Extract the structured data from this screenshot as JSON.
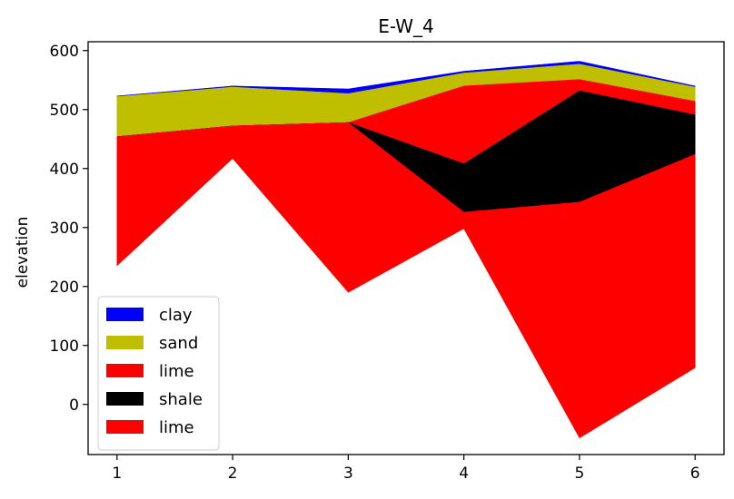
{
  "chart_data": {
    "type": "area",
    "title": "E-W_4",
    "xlabel": "",
    "ylabel": "elevation",
    "x": [
      1,
      2,
      3,
      4,
      5,
      6
    ],
    "xticks": [
      "1",
      "2",
      "3",
      "4",
      "5",
      "6"
    ],
    "yticks": [
      "0",
      "100",
      "200",
      "300",
      "400",
      "500",
      "600"
    ],
    "xlim": [
      0.75,
      6.25
    ],
    "ylim": [
      -85,
      615
    ],
    "grid": false,
    "legend_position": "lower-left",
    "layers": [
      {
        "name": "clay",
        "color": "#0000ff",
        "top": [
          523,
          540,
          535,
          565,
          582,
          540
        ],
        "bottom": [
          522,
          538,
          527,
          562,
          577,
          538
        ]
      },
      {
        "name": "sand",
        "color": "#bfbf00",
        "top": [
          522,
          538,
          527,
          562,
          577,
          538
        ],
        "bottom": [
          454,
          472,
          478,
          540,
          551,
          514
        ]
      },
      {
        "name": "lime",
        "color": "#ff0000",
        "top": [
          454,
          472,
          478,
          540,
          551,
          514
        ],
        "bottom": [
          454,
          472,
          478,
          408,
          532,
          491
        ]
      },
      {
        "name": "shale",
        "color": "#000000",
        "top": [
          454,
          472,
          478,
          408,
          532,
          491
        ],
        "bottom": [
          454,
          472,
          478,
          326,
          343,
          424
        ]
      },
      {
        "name": "lime",
        "color": "#ff0000",
        "top": [
          454,
          472,
          478,
          326,
          343,
          424
        ],
        "bottom": [
          235,
          417,
          190,
          298,
          -57,
          62
        ]
      }
    ]
  }
}
